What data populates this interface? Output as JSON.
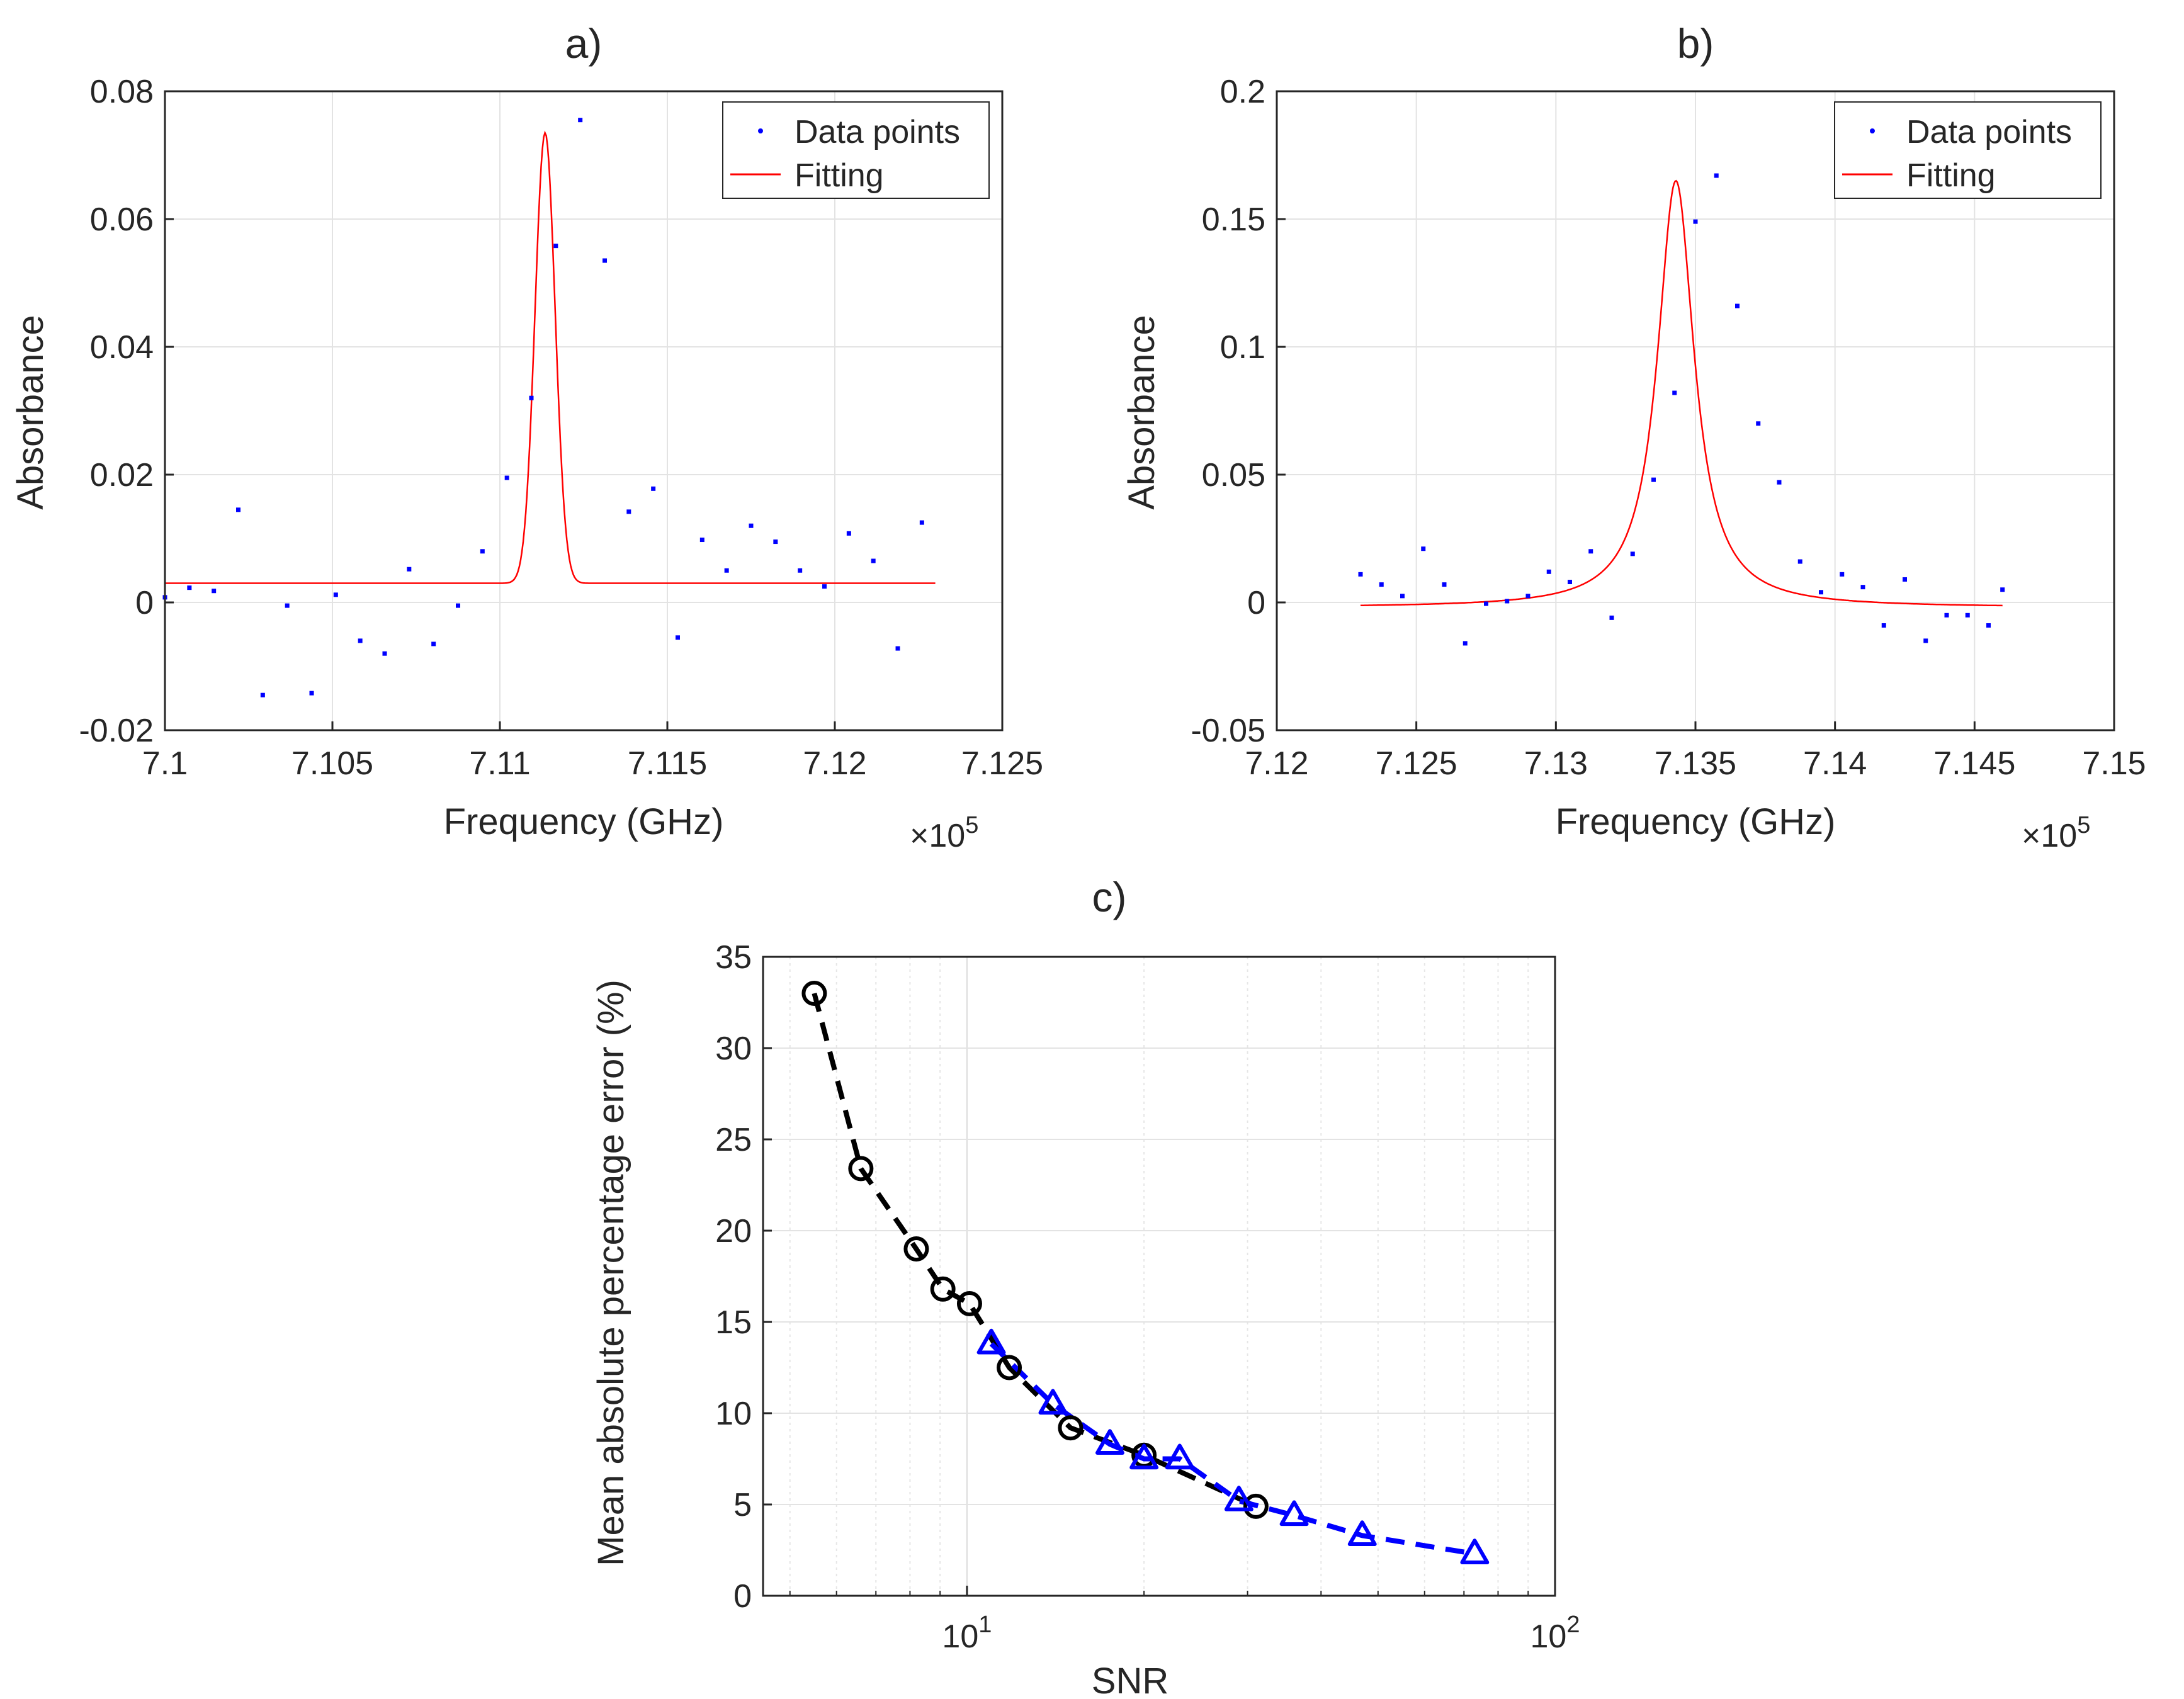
{
  "chart_data": [
    {
      "panel": "a)",
      "type": "scatter",
      "title": "a)",
      "xlabel": "Frequency (GHz)",
      "ylabel": "Absorbance",
      "xlim": [
        710000,
        712500
      ],
      "ylim": [
        -0.02,
        0.08
      ],
      "x_ticks": [
        7.1,
        7.105,
        7.11,
        7.115,
        7.12,
        7.125
      ],
      "x_tick_labels": [
        "7.1",
        "7.105",
        "7.11",
        "7.115",
        "7.12",
        "7.125"
      ],
      "y_ticks": [
        -0.02,
        0,
        0.02,
        0.04,
        0.06,
        0.08
      ],
      "y_tick_labels": [
        "-0.02",
        "0",
        "0.02",
        "0.04",
        "0.06",
        "0.08"
      ],
      "x_multiplier": {
        "base": "×10",
        "exponent": "5"
      },
      "grid": true,
      "legend": {
        "position": "top-right",
        "entries": [
          "Data points",
          "Fitting"
        ]
      },
      "series": [
        {
          "name": "Data points",
          "style": "dots",
          "color": "#0000ff",
          "x": [
            710000,
            710073,
            710146,
            710219,
            710292,
            710365,
            710438,
            710510,
            710583,
            710656,
            710729,
            710802,
            710875,
            710948,
            711021,
            711094,
            711167,
            711240,
            711313,
            711385,
            711458,
            711531,
            711604,
            711677,
            711750,
            711823,
            711896,
            711969,
            712042,
            712115,
            712188,
            712260
          ],
          "y": [
            0.0008,
            0.0023,
            0.0018,
            0.0145,
            -0.0145,
            -0.0005,
            -0.0142,
            0.0012,
            -0.006,
            -0.008,
            0.0052,
            -0.0065,
            -0.0005,
            0.008,
            0.0195,
            0.032,
            0.0558,
            0.0755,
            0.0535,
            0.0142,
            0.0178,
            -0.0055,
            0.0098,
            0.005,
            0.012,
            0.0095,
            0.005,
            0.0025,
            0.0108,
            0.0065,
            -0.0072,
            0.0125
          ]
        },
        {
          "name": "Fitting",
          "style": "line",
          "color": "#ff0000",
          "model": "gaussian",
          "x_range": [
            710000,
            712300
          ],
          "center": 711135,
          "amplitude": 0.0705,
          "sigma": 30,
          "baseline": 0.003
        }
      ]
    },
    {
      "panel": "b)",
      "type": "scatter",
      "title": "b)",
      "xlabel": "Frequency (GHz)",
      "ylabel": "Absorbance",
      "xlim": [
        712000,
        715000
      ],
      "ylim": [
        -0.05,
        0.2
      ],
      "x_ticks": [
        7.12,
        7.125,
        7.13,
        7.135,
        7.14,
        7.145,
        7.15
      ],
      "x_tick_labels": [
        "7.12",
        "7.125",
        "7.13",
        "7.135",
        "7.14",
        "7.145",
        "7.15"
      ],
      "y_ticks": [
        -0.05,
        0,
        0.05,
        0.1,
        0.15,
        0.2
      ],
      "y_tick_labels": [
        "-0.05",
        "0",
        "0.05",
        "0.1",
        "0.15",
        "0.2"
      ],
      "x_multiplier": {
        "base": "×10",
        "exponent": "5"
      },
      "grid": true,
      "legend": {
        "position": "top-right",
        "entries": [
          "Data points",
          "Fitting"
        ]
      },
      "series": [
        {
          "name": "Data points",
          "style": "dots",
          "color": "#0000ff",
          "x": [
            712300,
            712375,
            712450,
            712525,
            712600,
            712675,
            712750,
            712825,
            712900,
            712975,
            713050,
            713125,
            713200,
            713275,
            713350,
            713425,
            713500,
            713575,
            713650,
            713725,
            713800,
            713875,
            713950,
            714025,
            714100,
            714175,
            714250,
            714325,
            714400,
            714475,
            714550,
            714600
          ],
          "y": [
            0.011,
            0.007,
            0.0025,
            0.021,
            0.007,
            -0.016,
            -0.0005,
            0.0005,
            0.0025,
            0.012,
            0.008,
            0.02,
            -0.006,
            0.019,
            0.048,
            0.082,
            0.149,
            0.167,
            0.116,
            0.07,
            0.047,
            0.016,
            0.004,
            0.011,
            0.006,
            -0.009,
            0.009,
            -0.015,
            -0.005,
            -0.005,
            -0.009,
            0.005
          ]
        },
        {
          "name": "Fitting",
          "style": "line",
          "color": "#ff0000",
          "model": "lorentzian",
          "x_range": [
            712300,
            714600
          ],
          "center": 713430,
          "amplitude": 0.167,
          "gamma": 80,
          "baseline": -0.002
        }
      ]
    },
    {
      "panel": "c)",
      "type": "line",
      "title": "c)",
      "xlabel": "SNR",
      "ylabel": "Mean absolute percentage error (%)",
      "xscale": "log",
      "xlim": [
        4.5,
        100
      ],
      "ylim": [
        0,
        35
      ],
      "x_ticks": [
        10,
        100
      ],
      "x_tick_labels": [
        {
          "base": "10",
          "exponent": "1"
        },
        {
          "base": "10",
          "exponent": "2"
        }
      ],
      "y_ticks": [
        0,
        5,
        10,
        15,
        20,
        25,
        30,
        35
      ],
      "y_tick_labels": [
        "0",
        "5",
        "10",
        "15",
        "20",
        "25",
        "30",
        "35"
      ],
      "grid": true,
      "series": [
        {
          "name": "circles",
          "marker": "circle",
          "line": "dashed",
          "color": "#000000",
          "x": [
            5.5,
            6.6,
            8.2,
            9.1,
            10.1,
            11.8,
            15.0,
            20.0,
            31.0
          ],
          "y": [
            33.0,
            23.4,
            19.0,
            16.8,
            16.0,
            12.5,
            9.2,
            7.7,
            4.9
          ]
        },
        {
          "name": "triangles",
          "marker": "triangle",
          "line": "dashed",
          "color": "#0000ff",
          "x": [
            11.0,
            14.0,
            17.5,
            20.0,
            23.0,
            29.0,
            36.0,
            47.0,
            73.0
          ],
          "y": [
            13.8,
            10.5,
            8.3,
            7.5,
            7.5,
            5.2,
            4.4,
            3.3,
            2.3
          ]
        }
      ]
    }
  ]
}
